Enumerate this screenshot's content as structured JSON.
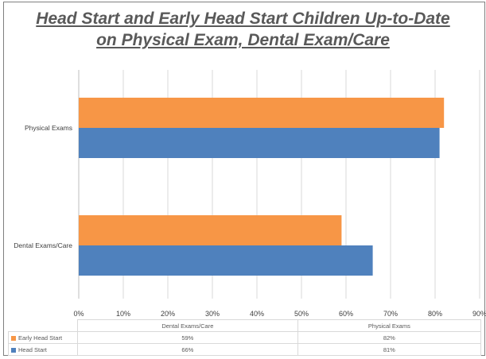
{
  "title_line1": "Head Start and Early Head Start Children Up-to-Date",
  "title_line2": "on Physical Exam, Dental Exam/Care",
  "colors": {
    "early_head_start": "#f79646",
    "head_start": "#4f81bd",
    "grid": "#d9d9d9",
    "axis": "#bfbfbf"
  },
  "chart_data": {
    "type": "bar",
    "orientation": "horizontal",
    "title": "Head Start and Early Head Start Children Up-to-Date on Physical Exam, Dental Exam/Care",
    "categories": [
      "Physical Exams",
      "Dental Exams/Care"
    ],
    "series": [
      {
        "name": "Early Head Start",
        "values": [
          82,
          59
        ]
      },
      {
        "name": "Head Start",
        "values": [
          81,
          66
        ]
      }
    ],
    "xlim": [
      0,
      90
    ],
    "x_ticks": [
      0,
      10,
      20,
      30,
      40,
      50,
      60,
      70,
      80,
      90
    ],
    "tick_format": "%",
    "grid": true,
    "legend": "data table below chart",
    "bar_values_plotted": {
      "Physical Exams": {
        "Early Head Start": 82,
        "Head Start": 81
      },
      "Dental Exams/Care": {
        "Early Head Start": 59,
        "Head Start": 66
      }
    }
  },
  "data_table": {
    "headers": [
      "Dental Exams/Care",
      "Physical Exams"
    ],
    "rows": [
      {
        "label": "Early Head Start",
        "values": [
          "59%",
          "82%"
        ]
      },
      {
        "label": "Head Start",
        "values": [
          "66%",
          "81%"
        ]
      }
    ]
  }
}
